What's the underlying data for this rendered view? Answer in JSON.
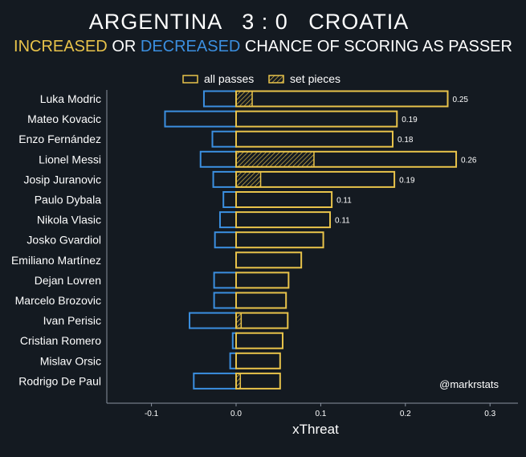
{
  "chart_data": {
    "type": "bar",
    "orientation": "horizontal",
    "title": {
      "team_home": "ARGENTINA",
      "score": "3 : 0",
      "team_away": "CROATIA"
    },
    "subtitle": {
      "part_increased": "INCREASED",
      "part_or": "OR",
      "part_decreased": "DECREASED",
      "part_rest": "CHANCE OF SCORING AS PASSER"
    },
    "xlabel": "xThreat",
    "xlim": [
      -0.15,
      0.32
    ],
    "xticks": [
      "-0.1",
      "0.0",
      "0.1",
      "0.2",
      "0.3"
    ],
    "xtick_values": [
      -0.1,
      0.0,
      0.1,
      0.2,
      0.3
    ],
    "legend": {
      "all_passes": "all passes",
      "set_pieces": "set pieces",
      "placement": "top-center"
    },
    "watermark": "@markrstats",
    "colors": {
      "positive": "#e8c34a",
      "negative": "#3b8fe0",
      "background": "#141a21",
      "text": "#ffffff",
      "axis": "#8a93a0"
    },
    "players": [
      {
        "name": "Luka Modric",
        "positive": 0.25,
        "negative": -0.038,
        "set_piece_pos": 0.019,
        "set_piece_neg": 0,
        "label": "0.25"
      },
      {
        "name": "Mateo Kovacic",
        "positive": 0.19,
        "negative": -0.084,
        "set_piece_pos": 0,
        "set_piece_neg": 0,
        "label": "0.19"
      },
      {
        "name": "Enzo Fernández",
        "positive": 0.185,
        "negative": -0.028,
        "set_piece_pos": 0,
        "set_piece_neg": 0,
        "label": "0.18"
      },
      {
        "name": "Lionel Messi",
        "positive": 0.26,
        "negative": -0.042,
        "set_piece_pos": 0.092,
        "set_piece_neg": 0,
        "label": "0.26"
      },
      {
        "name": "Josip Juranovic",
        "positive": 0.187,
        "negative": -0.027,
        "set_piece_pos": 0.029,
        "set_piece_neg": 0,
        "label": "0.19"
      },
      {
        "name": "Paulo Dybala",
        "positive": 0.113,
        "negative": -0.015,
        "set_piece_pos": 0,
        "set_piece_neg": 0,
        "label": "0.11"
      },
      {
        "name": "Nikola Vlasic",
        "positive": 0.111,
        "negative": -0.019,
        "set_piece_pos": 0,
        "set_piece_neg": 0,
        "label": "0.11"
      },
      {
        "name": "Josko Gvardiol",
        "positive": 0.103,
        "negative": -0.025,
        "set_piece_pos": 0,
        "set_piece_neg": 0,
        "label": ""
      },
      {
        "name": "Emiliano Martínez",
        "positive": 0.077,
        "negative": 0,
        "set_piece_pos": 0,
        "set_piece_neg": 0,
        "label": ""
      },
      {
        "name": "Dejan Lovren",
        "positive": 0.062,
        "negative": -0.026,
        "set_piece_pos": 0,
        "set_piece_neg": 0,
        "label": ""
      },
      {
        "name": "Marcelo Brozovic",
        "positive": 0.059,
        "negative": -0.026,
        "set_piece_pos": 0,
        "set_piece_neg": 0,
        "label": ""
      },
      {
        "name": "Ivan Perisic",
        "positive": 0.061,
        "negative": -0.055,
        "set_piece_pos": 0.006,
        "set_piece_neg": 0,
        "label": ""
      },
      {
        "name": "Cristian Romero",
        "positive": 0.055,
        "negative": -0.004,
        "set_piece_pos": 0,
        "set_piece_neg": 0,
        "label": ""
      },
      {
        "name": "Mislav Orsic",
        "positive": 0.052,
        "negative": -0.007,
        "set_piece_pos": 0,
        "set_piece_neg": 0,
        "label": ""
      },
      {
        "name": "Rodrigo De Paul",
        "positive": 0.052,
        "negative": -0.05,
        "set_piece_pos": 0.005,
        "set_piece_neg": 0,
        "label": ""
      }
    ]
  }
}
